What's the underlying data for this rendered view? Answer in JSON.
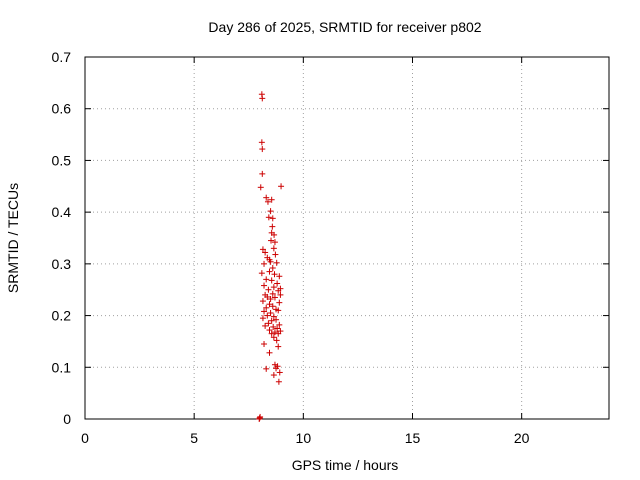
{
  "chart_data": {
    "type": "scatter",
    "title": "Day 286 of 2025, SRMTID for receiver p802",
    "xlabel": "GPS time / hours",
    "ylabel": "SRMTID / TECUs",
    "xlim": [
      0,
      24
    ],
    "ylim": [
      0,
      0.7
    ],
    "xticks": [
      0,
      5,
      10,
      15,
      20
    ],
    "yticks": [
      0,
      0.1,
      0.2,
      0.3,
      0.4,
      0.5,
      0.6,
      0.7
    ],
    "xtick_labels": [
      "0",
      "5",
      "10",
      "15",
      "20"
    ],
    "ytick_labels": [
      "0",
      "0.1",
      "0.2",
      "0.3",
      "0.4",
      "0.5",
      "0.6",
      "0.7"
    ],
    "grid": true,
    "marker": "plus",
    "marker_color": "#cc0000",
    "series": [
      {
        "points": [
          [
            7.98,
            0.0
          ],
          [
            8.0,
            0.002
          ],
          [
            8.02,
            0.004
          ],
          [
            8.1,
            0.628
          ],
          [
            8.12,
            0.62
          ],
          [
            8.1,
            0.535
          ],
          [
            8.12,
            0.522
          ],
          [
            8.12,
            0.474
          ],
          [
            8.05,
            0.448
          ],
          [
            8.98,
            0.45
          ],
          [
            8.3,
            0.428
          ],
          [
            8.55,
            0.424
          ],
          [
            8.38,
            0.42
          ],
          [
            8.5,
            0.402
          ],
          [
            8.42,
            0.39
          ],
          [
            8.6,
            0.388
          ],
          [
            8.58,
            0.372
          ],
          [
            8.55,
            0.36
          ],
          [
            8.66,
            0.356
          ],
          [
            8.52,
            0.345
          ],
          [
            8.7,
            0.342
          ],
          [
            8.15,
            0.328
          ],
          [
            8.65,
            0.33
          ],
          [
            8.25,
            0.322
          ],
          [
            8.72,
            0.318
          ],
          [
            8.35,
            0.312
          ],
          [
            8.45,
            0.308
          ],
          [
            8.2,
            0.3
          ],
          [
            8.5,
            0.304
          ],
          [
            8.78,
            0.302
          ],
          [
            8.6,
            0.292
          ],
          [
            8.1,
            0.282
          ],
          [
            8.45,
            0.285
          ],
          [
            8.68,
            0.28
          ],
          [
            8.9,
            0.276
          ],
          [
            8.3,
            0.27
          ],
          [
            8.55,
            0.268
          ],
          [
            8.8,
            0.262
          ],
          [
            8.2,
            0.258
          ],
          [
            8.65,
            0.255
          ],
          [
            8.95,
            0.252
          ],
          [
            8.4,
            0.25
          ],
          [
            8.85,
            0.248
          ],
          [
            8.6,
            0.242
          ],
          [
            8.25,
            0.24
          ],
          [
            8.35,
            0.236
          ],
          [
            8.5,
            0.232
          ],
          [
            8.7,
            0.235
          ],
          [
            8.95,
            0.24
          ],
          [
            8.15,
            0.228
          ],
          [
            8.45,
            0.222
          ],
          [
            8.9,
            0.225
          ],
          [
            8.6,
            0.218
          ],
          [
            8.3,
            0.215
          ],
          [
            8.75,
            0.212
          ],
          [
            8.2,
            0.208
          ],
          [
            8.5,
            0.205
          ],
          [
            8.85,
            0.21
          ],
          [
            8.35,
            0.2
          ],
          [
            8.65,
            0.198
          ],
          [
            8.15,
            0.195
          ],
          [
            8.55,
            0.19
          ],
          [
            8.75,
            0.192
          ],
          [
            8.4,
            0.185
          ],
          [
            8.9,
            0.182
          ],
          [
            8.25,
            0.18
          ],
          [
            8.62,
            0.178
          ],
          [
            8.8,
            0.175
          ],
          [
            8.45,
            0.172
          ],
          [
            8.7,
            0.168
          ],
          [
            8.95,
            0.17
          ],
          [
            8.55,
            0.165
          ],
          [
            8.85,
            0.165
          ],
          [
            8.65,
            0.158
          ],
          [
            8.78,
            0.152
          ],
          [
            8.2,
            0.145
          ],
          [
            8.85,
            0.14
          ],
          [
            8.45,
            0.128
          ],
          [
            8.7,
            0.105
          ],
          [
            8.82,
            0.102
          ],
          [
            8.75,
            0.098
          ],
          [
            8.3,
            0.097
          ],
          [
            8.92,
            0.09
          ],
          [
            8.65,
            0.085
          ],
          [
            8.88,
            0.072
          ]
        ]
      }
    ]
  }
}
